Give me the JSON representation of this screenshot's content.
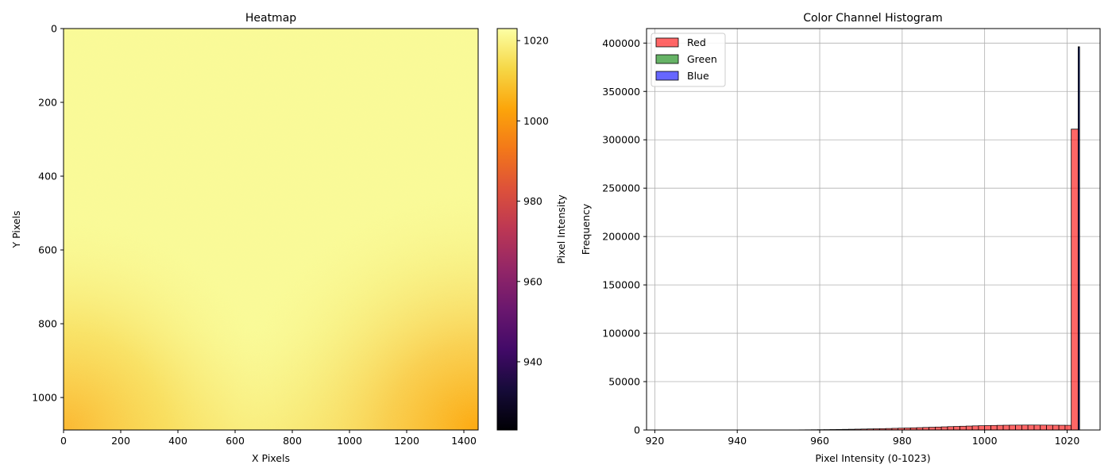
{
  "chart_data": [
    {
      "type": "heatmap",
      "title": "Heatmap",
      "xlabel": "X Pixels",
      "ylabel": "Y Pixels",
      "xlim": [
        0,
        1450
      ],
      "ylim": [
        1088,
        0
      ],
      "x_ticks": [
        "0",
        "200",
        "400",
        "600",
        "800",
        "1000",
        "1200",
        "1400"
      ],
      "y_ticks": [
        "0",
        "200",
        "400",
        "600",
        "800",
        "1000"
      ],
      "colorbar": {
        "label": "Pixel Intensity",
        "colormap": "inferno",
        "range": [
          923,
          1023
        ],
        "ticks": [
          "940",
          "960",
          "980",
          "1000",
          "1020"
        ]
      },
      "field": {
        "center_value": 1021,
        "corner_falloff": "bottom-left and bottom-right corners darker (about 1003 at bottom-right corner)"
      }
    },
    {
      "type": "bar",
      "title": "Color Channel Histogram",
      "xlabel": "Pixel Intensity (0-1023)",
      "ylabel": "Frequency",
      "xlim": [
        918,
        1028
      ],
      "ylim": [
        0,
        415000
      ],
      "x_ticks": [
        "920",
        "940",
        "960",
        "980",
        "1000",
        "1020"
      ],
      "y_ticks": [
        "0",
        "50000",
        "100000",
        "150000",
        "200000",
        "250000",
        "300000",
        "350000",
        "400000"
      ],
      "grid": true,
      "legend_position": "top-left",
      "bin_width": 1.5,
      "bin_edges_start": 955,
      "series": [
        {
          "name": "Red",
          "color": "#ff0000",
          "values": [
            150,
            200,
            260,
            330,
            400,
            480,
            560,
            650,
            750,
            860,
            980,
            1100,
            1240,
            1380,
            1540,
            1700,
            1870,
            2050,
            2240,
            2430,
            2630,
            2840,
            3040,
            3250,
            3470,
            3680,
            3880,
            4070,
            4250,
            4420,
            4570,
            4700,
            4820,
            4920,
            5000,
            5050,
            5080,
            5100,
            5080,
            5050,
            5000,
            4950,
            4900,
            4850,
            311000
          ],
          "final_bin": {
            "x": [
              1021,
              1023
            ],
            "value": 311000
          }
        },
        {
          "name": "Green",
          "color": "#008000",
          "values": [],
          "final_bin": {
            "x": [
              1022.7,
              1023
            ],
            "value": 396000
          }
        },
        {
          "name": "Blue",
          "color": "#0000ff",
          "values": [],
          "final_bin": {
            "x": [
              1022.7,
              1023
            ],
            "value": 396000
          }
        }
      ]
    }
  ]
}
